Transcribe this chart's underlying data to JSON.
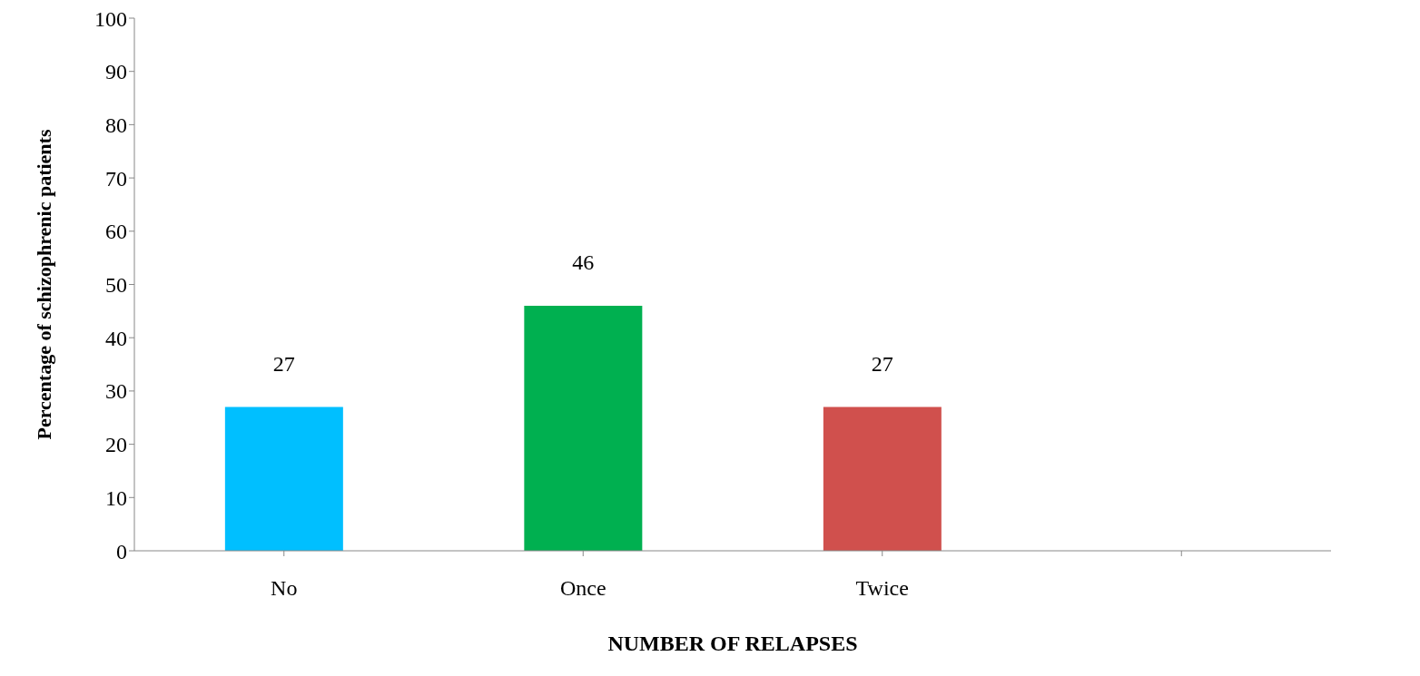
{
  "chart_data": {
    "type": "bar",
    "xlabel": "NUMBER OF RELAPSES",
    "ylabel": "Percentage of schizophrenic patients",
    "categories": [
      "No",
      "Once",
      "Twice",
      null
    ],
    "values": [
      27,
      46,
      27,
      null
    ],
    "colors": [
      "#00bfff",
      "#00b050",
      "#d0504d",
      "#808080"
    ],
    "ylim": [
      0,
      100
    ],
    "yticks": [
      0,
      10,
      20,
      30,
      40,
      50,
      60,
      70,
      80,
      90,
      100
    ],
    "grid": false,
    "data_labels": true
  }
}
